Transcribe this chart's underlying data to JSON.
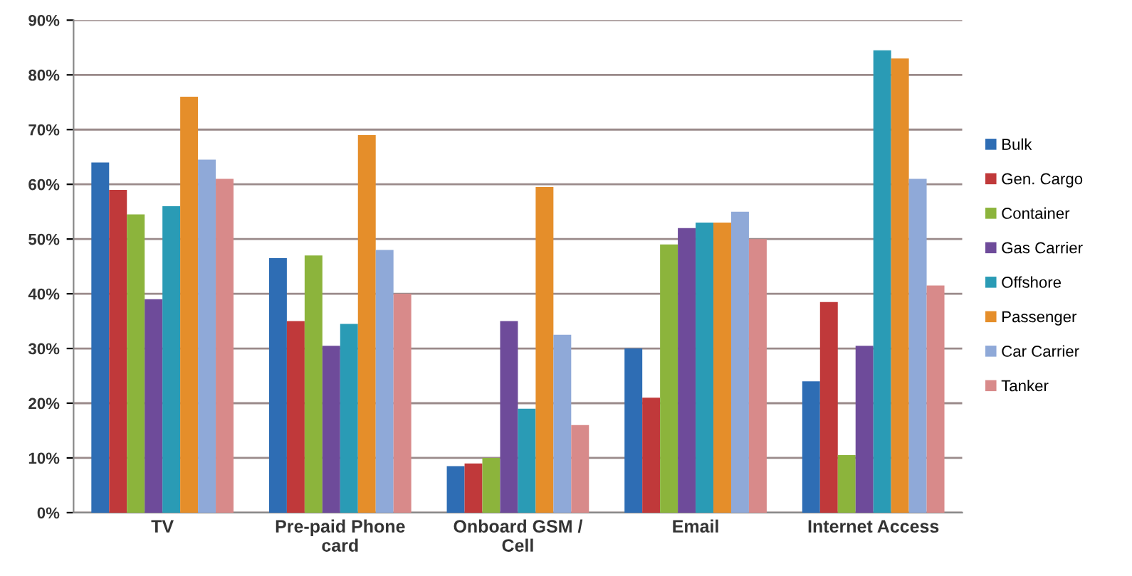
{
  "chart_data": {
    "type": "bar",
    "categories": [
      "TV",
      "Pre-paid Phone\ncard",
      "Onboard GSM /\nCell",
      "Email",
      "Internet Access"
    ],
    "series": [
      {
        "name": "Bulk",
        "color": "#2e6db4",
        "values": [
          64,
          46.5,
          8.5,
          30,
          24
        ]
      },
      {
        "name": "Gen. Cargo",
        "color": "#c0393a",
        "values": [
          59,
          35,
          9,
          21,
          38.5
        ]
      },
      {
        "name": "Container",
        "color": "#8cb43c",
        "values": [
          54.5,
          47,
          10,
          49,
          10.5
        ]
      },
      {
        "name": "Gas Carrier",
        "color": "#6e4b9a",
        "values": [
          39,
          30.5,
          35,
          52,
          30.5
        ]
      },
      {
        "name": "Offshore",
        "color": "#2a9bb5",
        "values": [
          56,
          34.5,
          19,
          53,
          84.5
        ]
      },
      {
        "name": "Passenger",
        "color": "#e58e2a",
        "values": [
          76,
          69,
          59.5,
          53,
          83
        ]
      },
      {
        "name": "Car Carrier",
        "color": "#8fa9d8",
        "values": [
          64.5,
          48,
          32.5,
          55,
          61
        ]
      },
      {
        "name": "Tanker",
        "color": "#d88a8a",
        "values": [
          61,
          40,
          16,
          50,
          41.5
        ]
      }
    ],
    "ylim": [
      0,
      90
    ],
    "yticks": [
      {
        "value": 0,
        "label": "0%"
      },
      {
        "value": 10,
        "label": "10%"
      },
      {
        "value": 20,
        "label": "20%"
      },
      {
        "value": 30,
        "label": "30%"
      },
      {
        "value": 40,
        "label": "40%"
      },
      {
        "value": 50,
        "label": "50%"
      },
      {
        "value": 60,
        "label": "60%"
      },
      {
        "value": 70,
        "label": "70%"
      },
      {
        "value": 80,
        "label": "80%"
      },
      {
        "value": 90,
        "label": "90%"
      }
    ],
    "grid": "y",
    "legend": "right"
  }
}
